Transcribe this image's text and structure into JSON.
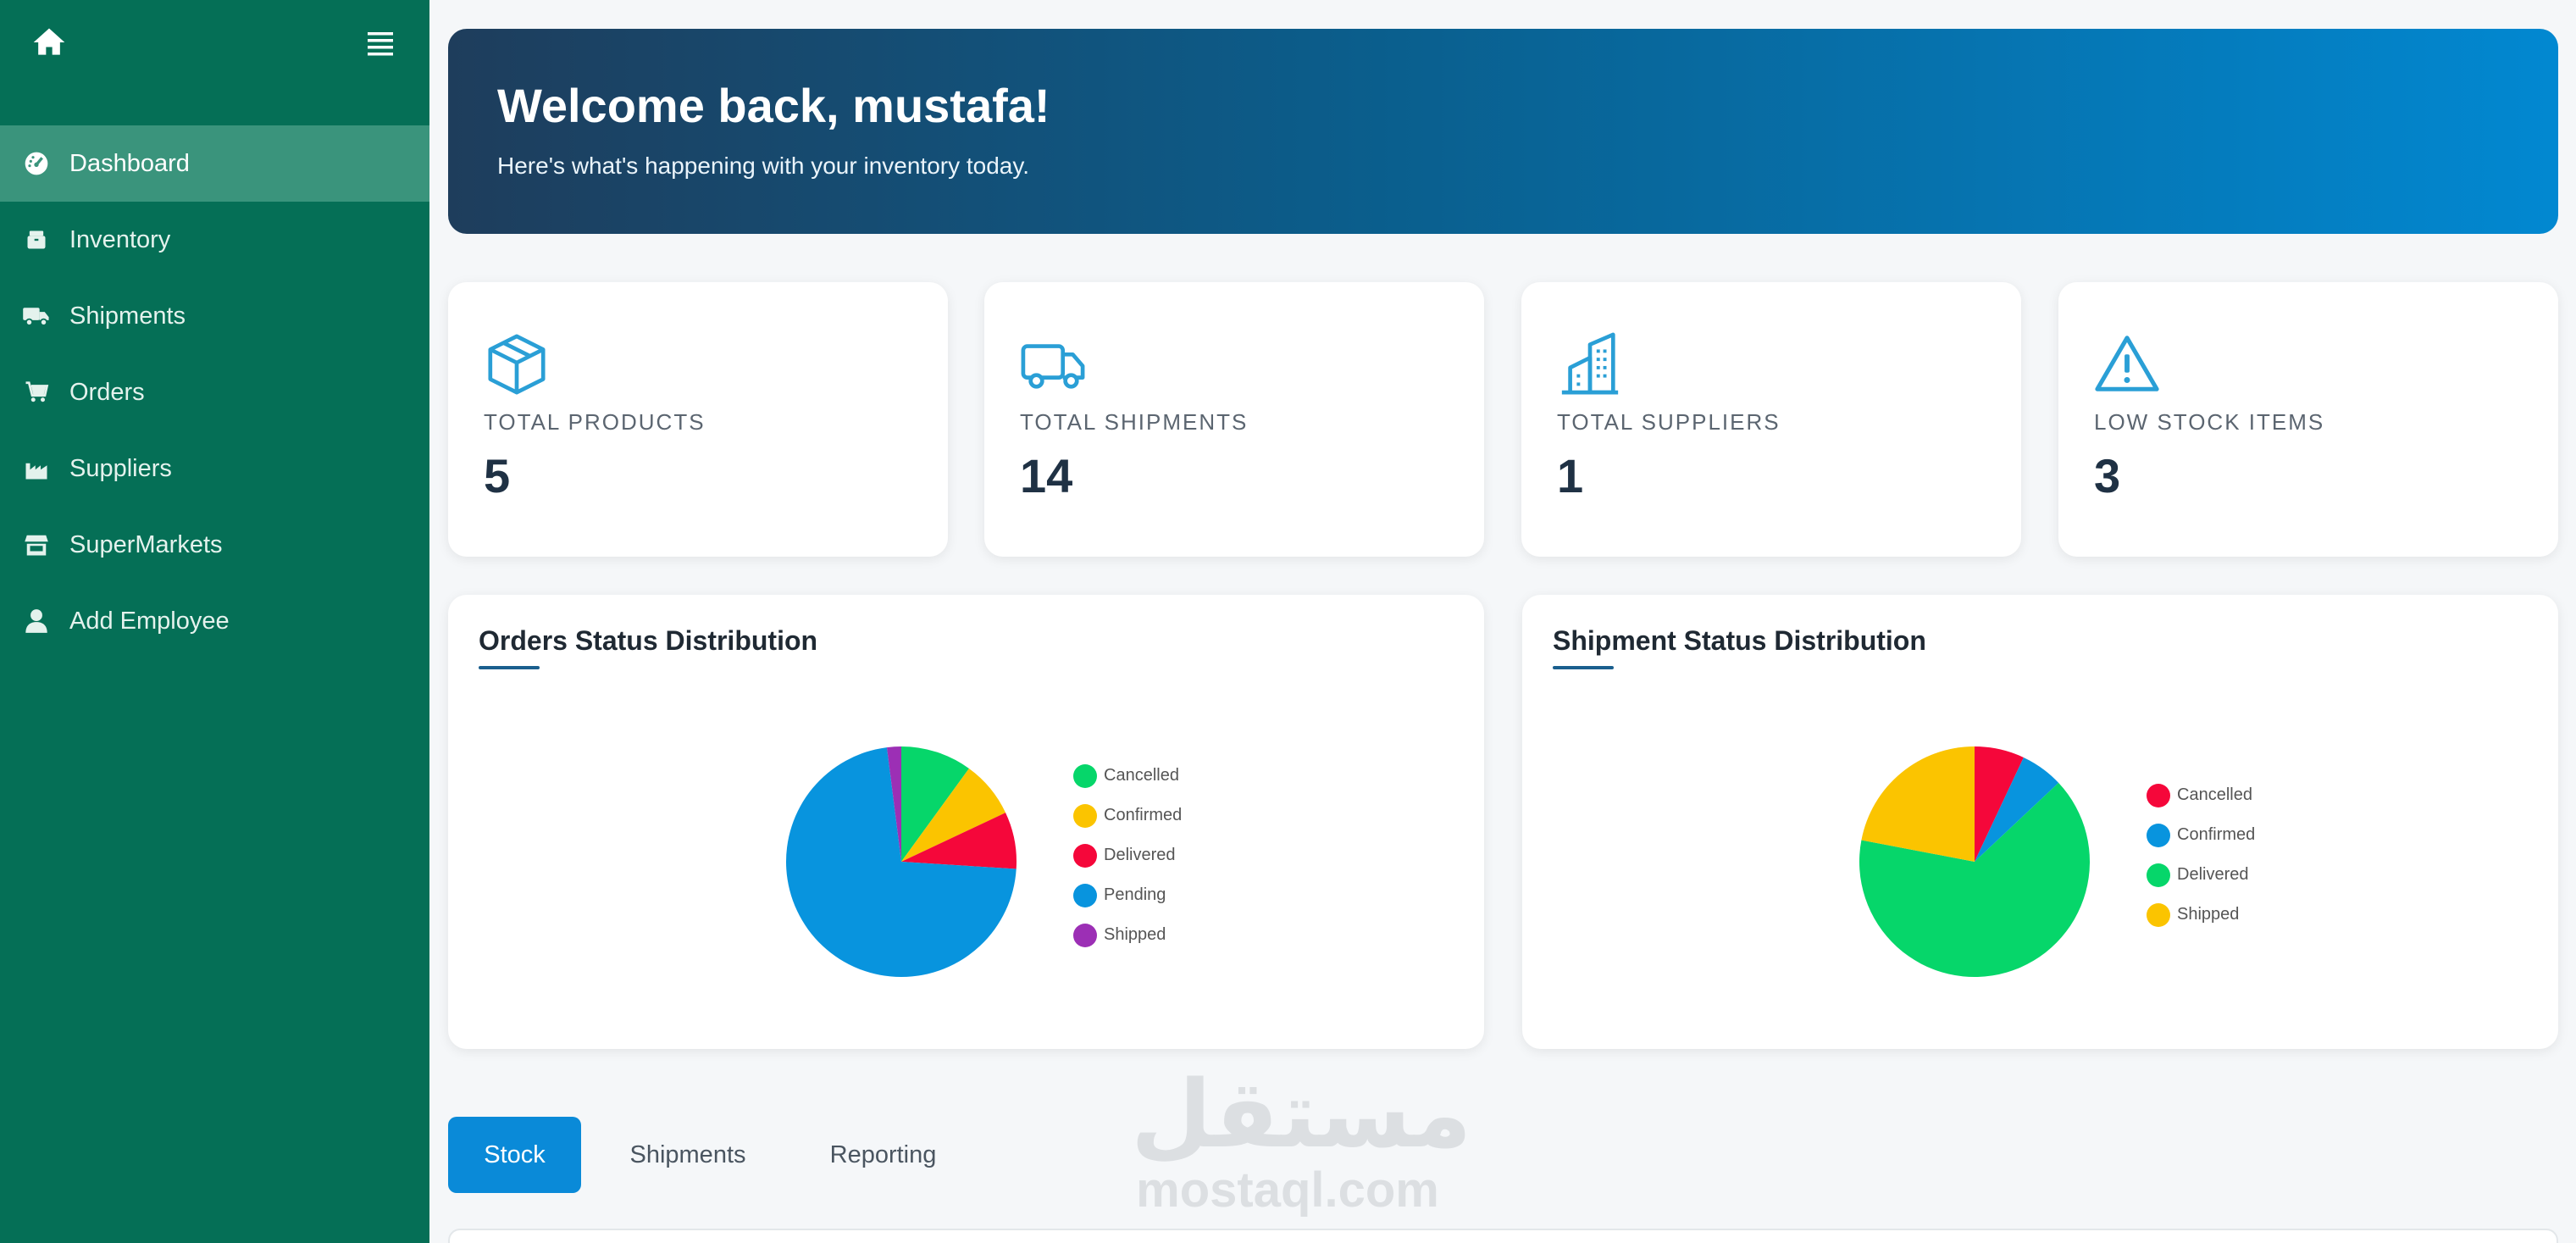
{
  "sidebar": {
    "home_icon": "home-icon",
    "menu_icon": "hamburger-menu-icon",
    "items": [
      {
        "label": "Dashboard",
        "icon": "dashboard-gauge-icon",
        "active": true
      },
      {
        "label": "Inventory",
        "icon": "box-icon"
      },
      {
        "label": "Shipments",
        "icon": "truck-icon"
      },
      {
        "label": "Orders",
        "icon": "cart-icon"
      },
      {
        "label": "Suppliers",
        "icon": "factory-icon"
      },
      {
        "label": "SuperMarkets",
        "icon": "store-icon"
      },
      {
        "label": "Add Employee",
        "icon": "user-icon"
      }
    ]
  },
  "hero": {
    "title": "Welcome back, mustafa!",
    "subtitle": "Here's what's happening with your inventory today."
  },
  "stats": [
    {
      "label": "TOTAL PRODUCTS",
      "value": "5",
      "icon": "cube-icon"
    },
    {
      "label": "TOTAL SHIPMENTS",
      "value": "14",
      "icon": "truck-icon"
    },
    {
      "label": "TOTAL SUPPLIERS",
      "value": "1",
      "icon": "building-icon"
    },
    {
      "label": "LOW STOCK ITEMS",
      "value": "3",
      "icon": "warning-icon"
    }
  ],
  "chart_data": [
    {
      "type": "pie",
      "title": "Orders Status Distribution",
      "categories": [
        "Cancelled",
        "Confirmed",
        "Delivered",
        "Pending",
        "Shipped"
      ],
      "values": [
        10,
        8,
        8,
        72,
        2
      ],
      "colors": [
        "#06d66a",
        "#fbc400",
        "#f5073a",
        "#0894de",
        "#9c2fb5"
      ],
      "legend": "right"
    },
    {
      "type": "pie",
      "title": "Shipment Status Distribution",
      "categories": [
        "Cancelled",
        "Confirmed",
        "Delivered",
        "Shipped"
      ],
      "values": [
        7,
        6,
        65,
        22
      ],
      "colors": [
        "#f5073a",
        "#0894de",
        "#06d66a",
        "#fbc400"
      ],
      "legend": "right"
    }
  ],
  "tabs": [
    {
      "label": "Stock",
      "active": true
    },
    {
      "label": "Shipments"
    },
    {
      "label": "Reporting"
    }
  ],
  "watermark": {
    "arabic": "مستقل",
    "latin": "mostaql.com"
  },
  "colors": {
    "sidebar": "#056f56",
    "sidebar_active": "#3a947c",
    "accent": "#0a8ad8",
    "icon": "#2a9fd6"
  }
}
